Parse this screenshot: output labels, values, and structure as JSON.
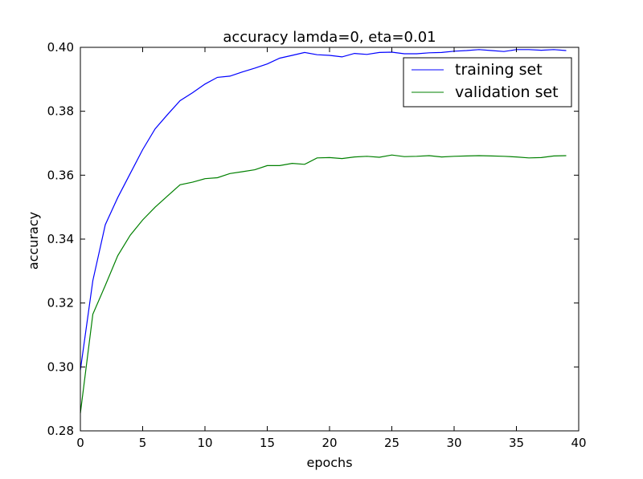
{
  "chart_data": {
    "type": "line",
    "title": "accuracy lamda=0, eta=0.01",
    "xlabel": "epochs",
    "ylabel": "accuracy",
    "xlim": [
      0,
      40
    ],
    "ylim": [
      0.28,
      0.4
    ],
    "xticks": [
      0,
      5,
      10,
      15,
      20,
      25,
      30,
      35,
      40
    ],
    "xtick_labels": [
      "0",
      "5",
      "10",
      "15",
      "20",
      "25",
      "30",
      "35",
      "40"
    ],
    "yticks": [
      0.28,
      0.3,
      0.32,
      0.34,
      0.36,
      0.38,
      0.4
    ],
    "ytick_labels": [
      "0.28",
      "0.30",
      "0.32",
      "0.34",
      "0.36",
      "0.38",
      "0.40"
    ],
    "grid": false,
    "legend": "top-right",
    "x": [
      0,
      1,
      2,
      3,
      4,
      5,
      6,
      7,
      8,
      9,
      10,
      11,
      12,
      13,
      14,
      15,
      16,
      17,
      18,
      19,
      20,
      21,
      22,
      23,
      24,
      25,
      26,
      27,
      28,
      29,
      30,
      31,
      32,
      33,
      34,
      35,
      36,
      37,
      38,
      39
    ],
    "series": [
      {
        "name": "training set",
        "color": "#0000ff",
        "values": [
          0.299,
          0.327,
          0.3445,
          0.353,
          0.3605,
          0.368,
          0.3745,
          0.379,
          0.3833,
          0.3858,
          0.3885,
          0.3906,
          0.391,
          0.3923,
          0.3935,
          0.3948,
          0.3966,
          0.3975,
          0.3984,
          0.3977,
          0.3975,
          0.397,
          0.3981,
          0.3978,
          0.3984,
          0.3985,
          0.398,
          0.398,
          0.3983,
          0.3984,
          0.3988,
          0.399,
          0.3993,
          0.399,
          0.3987,
          0.3993,
          0.3993,
          0.3991,
          0.3993,
          0.399
        ]
      },
      {
        "name": "validation set",
        "color": "#008000",
        "values": [
          0.2855,
          0.3165,
          0.3255,
          0.3348,
          0.3412,
          0.346,
          0.35,
          0.3535,
          0.357,
          0.3578,
          0.3589,
          0.3592,
          0.3605,
          0.3611,
          0.3617,
          0.363,
          0.363,
          0.3637,
          0.3634,
          0.3654,
          0.3655,
          0.3652,
          0.3657,
          0.3659,
          0.3656,
          0.3663,
          0.3658,
          0.3659,
          0.3661,
          0.3657,
          0.3659,
          0.366,
          0.3661,
          0.366,
          0.3659,
          0.3657,
          0.3654,
          0.3655,
          0.366,
          0.3661
        ]
      }
    ]
  }
}
